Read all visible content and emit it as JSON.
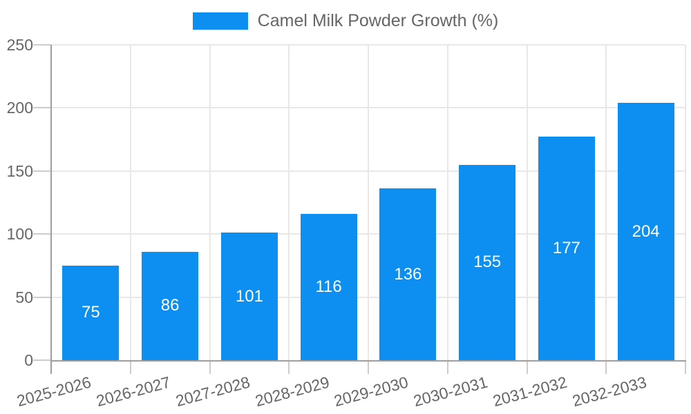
{
  "chart_data": {
    "type": "bar",
    "title": "",
    "legend": "Camel Milk Powder Growth (%)",
    "legend_position": "top",
    "categories": [
      "2025-2026",
      "2026-2027",
      "2027-2028",
      "2028-2029",
      "2029-2030",
      "2030-2031",
      "2031-2032",
      "2032-2033"
    ],
    "values": [
      75,
      86,
      101,
      116,
      136,
      155,
      177,
      204
    ],
    "xlabel": "",
    "ylabel": "",
    "ylim": [
      0,
      250
    ],
    "yticks": [
      0,
      50,
      100,
      150,
      200,
      250
    ],
    "grid": true,
    "bar_label_placement": "inside-center",
    "colors": {
      "bar": "#0d8ff2",
      "bar_label_text": "#ffffff",
      "axis_line": "#9e9e9e",
      "gridline": "#e8e8e8",
      "tick": "#cccccc",
      "text": "#666666",
      "background": "#ffffff"
    }
  }
}
